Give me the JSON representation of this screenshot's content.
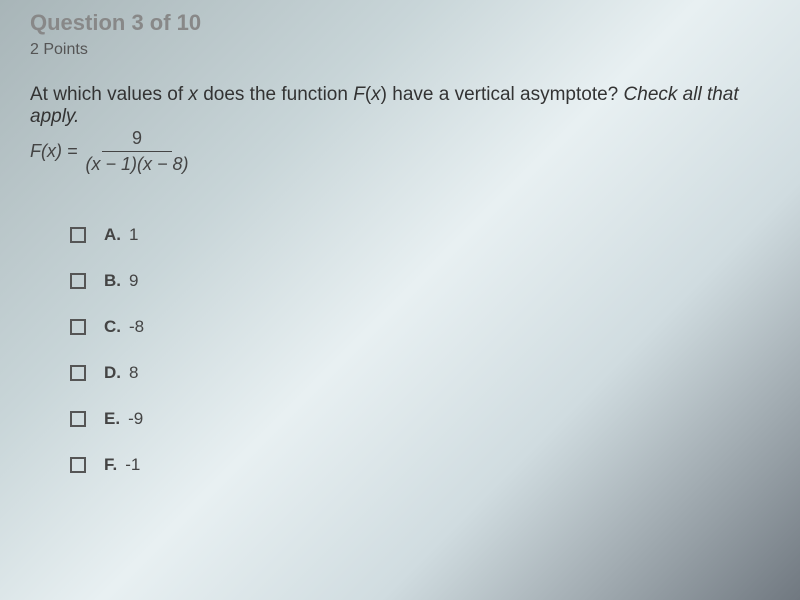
{
  "header": {
    "question_number": "Question 3 of 10",
    "points": "2 Points"
  },
  "question": {
    "text": "At which values of x does the function F(x) have a vertical asymptote?",
    "instruction": "Check all that apply."
  },
  "formula": {
    "left": "F(x) =",
    "numerator": "9",
    "denominator": "(x − 1)(x − 8)"
  },
  "options": [
    {
      "label": "A.",
      "value": "1"
    },
    {
      "label": "B.",
      "value": "9"
    },
    {
      "label": "C.",
      "value": "-8"
    },
    {
      "label": "D.",
      "value": "8"
    },
    {
      "label": "E.",
      "value": "-9"
    },
    {
      "label": "F.",
      "value": "-1"
    }
  ]
}
